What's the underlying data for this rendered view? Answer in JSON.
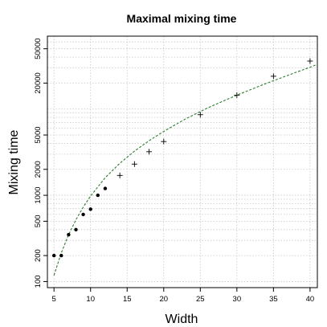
{
  "chart_data": {
    "type": "scatter",
    "title": "Maximal mixing time",
    "xlabel": "Width",
    "ylabel": "Mixing time",
    "xlim": [
      4.1,
      41.0
    ],
    "ylim": [
      85,
      70000
    ],
    "y_scale": "log",
    "grid": true,
    "x_ticks": [
      5,
      10,
      15,
      20,
      25,
      30,
      35,
      40
    ],
    "y_ticks_labeled": [
      100,
      200,
      500,
      1000,
      2000,
      5000,
      20000,
      50000
    ],
    "y_grid_minor": [
      300,
      400,
      600,
      700,
      800,
      900,
      3000,
      4000,
      6000,
      7000,
      8000,
      9000,
      10000,
      30000,
      40000,
      60000
    ],
    "series": [
      {
        "marker": "filled-circle",
        "color": "#000000",
        "x": [
          5,
          6,
          7,
          8,
          9,
          10,
          11,
          12
        ],
        "y": [
          200,
          200,
          350,
          400,
          600,
          690,
          1000,
          1200
        ]
      },
      {
        "marker": "plus",
        "color": "#000000",
        "x": [
          14,
          16,
          18,
          20,
          25,
          30,
          35,
          40
        ],
        "y": [
          1700,
          2300,
          3200,
          4200,
          8600,
          14500,
          24000,
          36000
        ]
      },
      {
        "style": "dashed-line",
        "color": "#2e7d2e",
        "x": [
          5,
          6,
          7,
          8,
          9,
          10,
          12,
          14,
          16,
          18,
          20,
          23,
          26,
          30,
          34,
          38,
          40,
          41
        ],
        "y": [
          118,
          215,
          350,
          520,
          730,
          980,
          1600,
          2350,
          3250,
          4300,
          5500,
          7700,
          10300,
          14500,
          19800,
          26500,
          30500,
          33000
        ]
      }
    ]
  }
}
